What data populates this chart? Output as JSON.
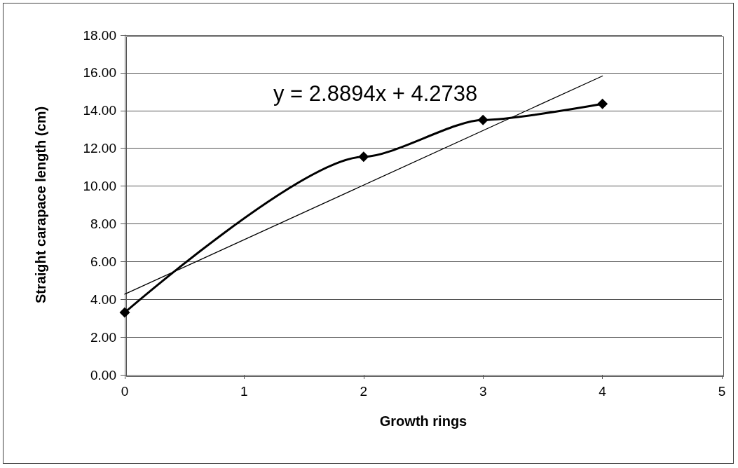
{
  "chart_data": {
    "type": "line",
    "xlabel": "Growth rings",
    "ylabel": "Straight carapace length (cm)",
    "annotations": [
      "y = 2.8894x + 4.2738"
    ],
    "xlim": [
      0,
      5
    ],
    "xticks": [
      0,
      1,
      2,
      3,
      4,
      5
    ],
    "ylim": [
      0,
      18
    ],
    "yticks": [
      {
        "value": 0,
        "label": "0.00"
      },
      {
        "value": 2,
        "label": "2.00"
      },
      {
        "value": 4,
        "label": "4.00"
      },
      {
        "value": 6,
        "label": "6.00"
      },
      {
        "value": 8,
        "label": "8.00"
      },
      {
        "value": 10,
        "label": "10.00"
      },
      {
        "value": 12,
        "label": "12.00"
      },
      {
        "value": 14,
        "label": "14.00"
      },
      {
        "value": 16,
        "label": "16.00"
      },
      {
        "value": 18,
        "label": "18.00"
      }
    ],
    "grid": "y",
    "marker": "diamond",
    "line_style": "solid",
    "series": [
      {
        "color": "#000000",
        "x": [
          0,
          2,
          3,
          4
        ],
        "values": [
          3.3,
          11.55,
          13.5,
          14.35
        ]
      },
      {
        "color": "#000000",
        "marker": "none",
        "x": [
          0,
          4
        ],
        "values": [
          4.27,
          15.83
        ]
      }
    ]
  }
}
